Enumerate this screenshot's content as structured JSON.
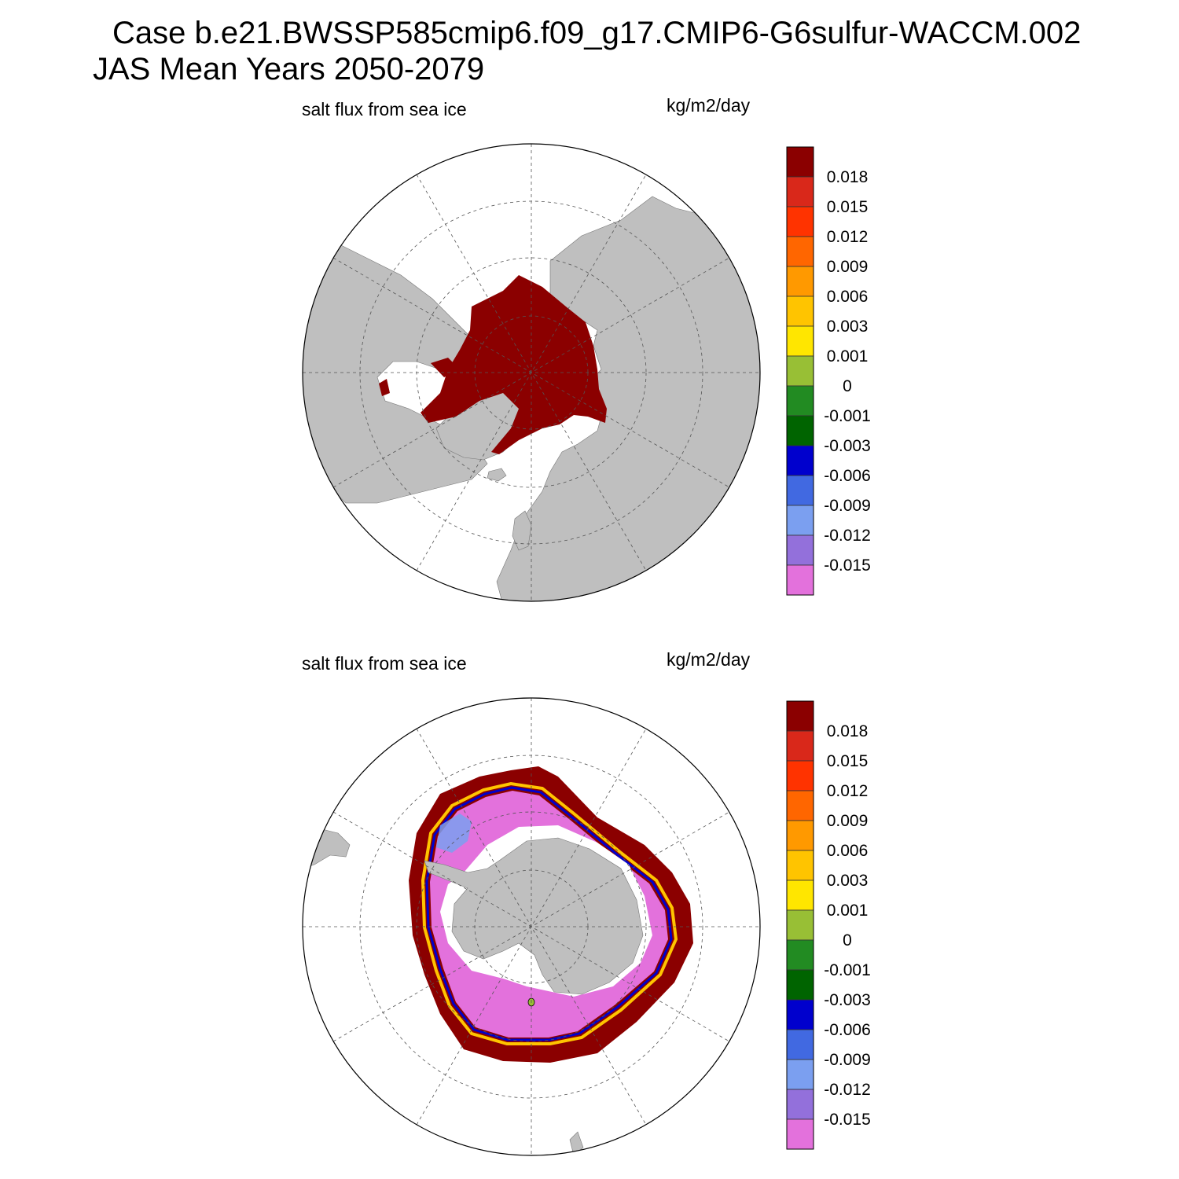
{
  "title": {
    "line1": "Case b.e21.BWSSP585cmip6.f09_g17.CMIP6-G6sulfur-WACCM.002",
    "line2": "JAS Mean   Years 2050-2079"
  },
  "panels": [
    {
      "id": "north",
      "hemisphere": "Northern Hemisphere",
      "variable": "salt flux from sea ice",
      "units": "kg/m2/day"
    },
    {
      "id": "south",
      "hemisphere": "Southern Hemisphere",
      "variable": "salt flux from sea ice",
      "units": "kg/m2/day"
    }
  ],
  "colorbar": {
    "labels": [
      "0.018",
      "0.015",
      "0.012",
      "0.009",
      "0.006",
      "0.003",
      "0.001",
      "0",
      "-0.001",
      "-0.003",
      "-0.006",
      "-0.009",
      "-0.012",
      "-0.015"
    ],
    "colors": [
      "#8b0000",
      "#d9281a",
      "#ff3300",
      "#ff6600",
      "#ff9900",
      "#ffc400",
      "#ffe600",
      "#98bf35",
      "#228b22",
      "#006400",
      "#0000cd",
      "#4169e1",
      "#7b9ff0",
      "#9370db",
      "#e371dc"
    ]
  },
  "colors": {
    "land": "#bfbfbf",
    "ocean": "#ffffff",
    "grid": "#555555",
    "max_flux": "#8b0000",
    "min_flux": "#e371dc"
  }
}
